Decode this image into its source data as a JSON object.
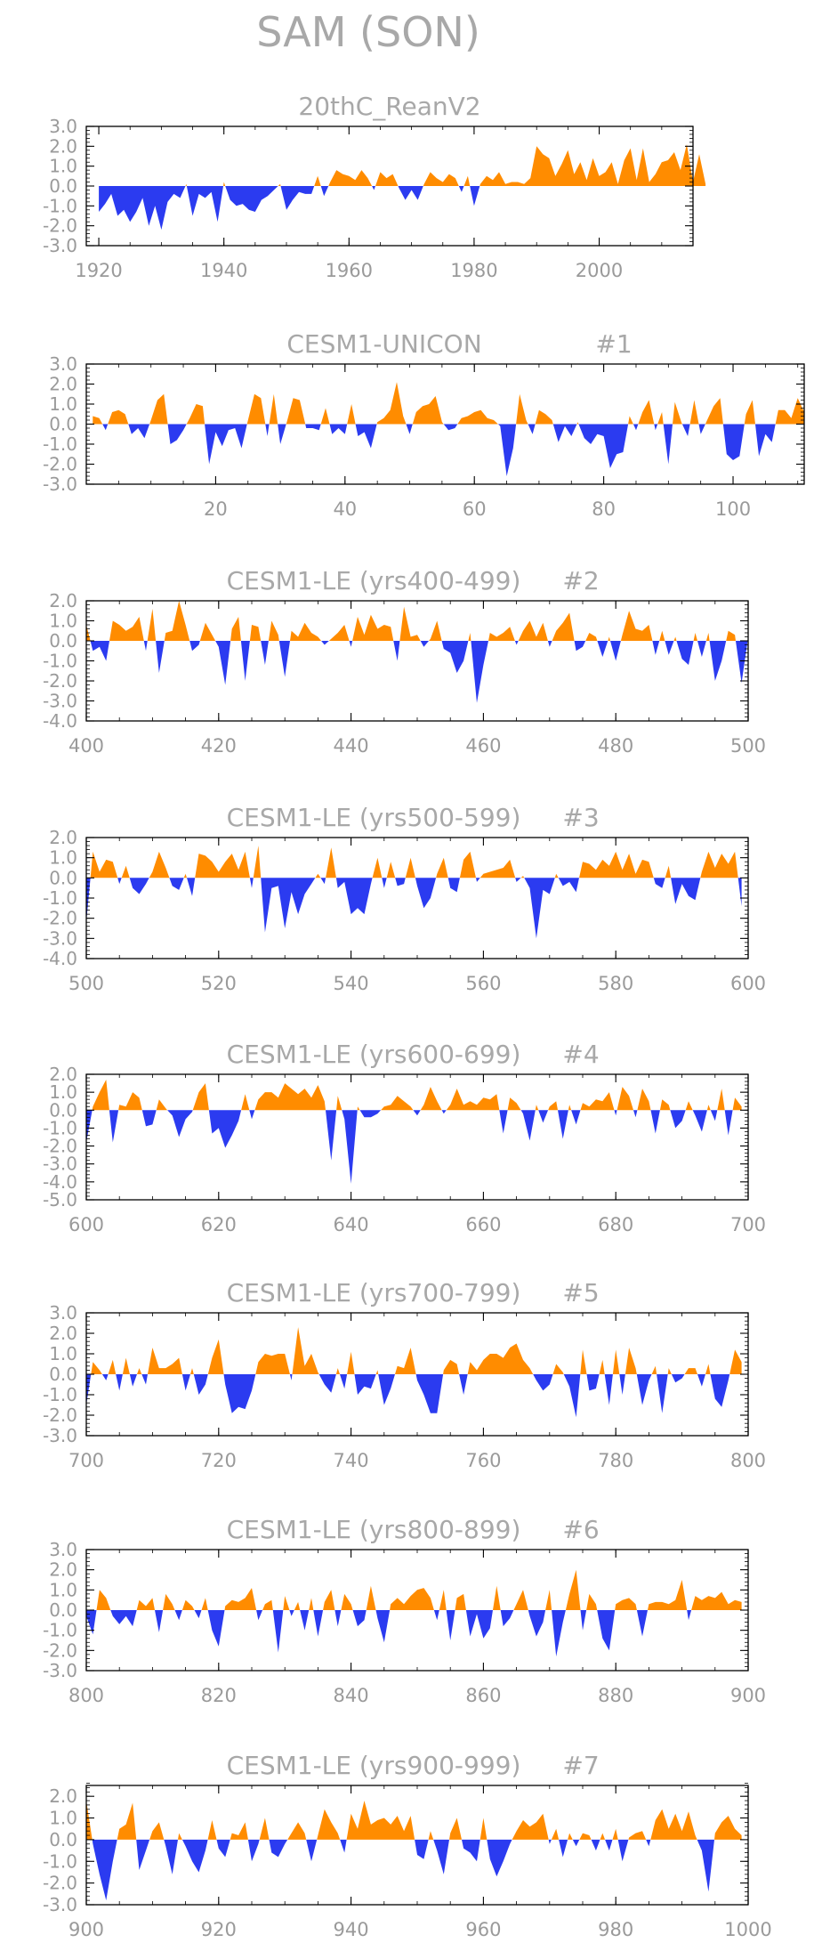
{
  "page": {
    "title": "SAM (SON)"
  },
  "colors": {
    "positive": "#ff8c00",
    "negative": "#2b3bf0",
    "frame": "#000000",
    "text": "#a8a8a8"
  },
  "chart_data": [
    {
      "type": "area",
      "title": "20thC_ReanV2",
      "xlim": [
        1918,
        2015
      ],
      "ylim": [
        -3.0,
        3.0
      ],
      "xticks": [
        1920,
        1940,
        1960,
        1980,
        2000
      ],
      "xtick_labels": [
        "1920",
        "1940",
        "1960",
        "1980",
        "2000"
      ],
      "yticks": [
        -3.0,
        -2.0,
        -1.0,
        0.0,
        1.0,
        2.0,
        3.0
      ],
      "ytick_labels": [
        "-3.0",
        "-2.0",
        "-1.0",
        "0.0",
        "1.0",
        "2.0",
        "3.0"
      ],
      "x_start": 1920,
      "values": [
        -1.3,
        -0.9,
        -0.4,
        -1.5,
        -1.2,
        -1.8,
        -1.3,
        -0.6,
        -2.0,
        -1.0,
        -2.2,
        -0.8,
        -0.4,
        -0.6,
        0.1,
        -1.5,
        -0.4,
        -0.6,
        -0.3,
        -1.8,
        0.2,
        -0.7,
        -1.0,
        -0.9,
        -1.2,
        -1.3,
        -0.7,
        -0.5,
        -0.2,
        0.1,
        -1.2,
        -0.7,
        -0.3,
        -0.4,
        -0.4,
        0.5,
        -0.5,
        0.2,
        0.8,
        0.6,
        0.5,
        0.3,
        0.8,
        0.4,
        -0.2,
        0.7,
        0.4,
        0.6,
        -0.1,
        -0.7,
        -0.2,
        -0.7,
        0.1,
        0.7,
        0.4,
        0.2,
        0.6,
        0.4,
        -0.3,
        0.5,
        -1.0,
        0.1,
        0.5,
        0.3,
        0.7,
        0.1,
        0.2,
        0.2,
        0.1,
        0.4,
        2.0,
        1.6,
        1.4,
        0.5,
        1.1,
        1.8,
        0.6,
        1.2,
        0.3,
        1.4,
        0.5,
        0.7,
        1.2,
        0.1,
        1.3,
        1.9,
        0.3,
        1.9,
        0.2,
        0.6,
        1.2,
        1.3,
        1.7,
        0.8,
        2.1,
        0.2,
        1.6,
        0.1
      ]
    },
    {
      "type": "area",
      "title": "CESM1-UNICON",
      "tag": "#1",
      "xlim": [
        0,
        111
      ],
      "ylim": [
        -3.0,
        3.0
      ],
      "xticks": [
        20,
        40,
        60,
        80,
        100
      ],
      "xtick_labels": [
        "20",
        "40",
        "60",
        "80",
        "100"
      ],
      "yticks": [
        -3.0,
        -2.0,
        -1.0,
        0.0,
        1.0,
        2.0,
        3.0
      ],
      "ytick_labels": [
        "-3.0",
        "-2.0",
        "-1.0",
        "0.0",
        "1.0",
        "2.0",
        "3.0"
      ],
      "x_start": 1,
      "values": [
        0.4,
        0.3,
        -0.3,
        0.6,
        0.7,
        0.5,
        -0.5,
        -0.2,
        -0.7,
        0.2,
        1.2,
        1.5,
        -1.0,
        -0.8,
        -0.3,
        0.3,
        1.0,
        0.9,
        -2.0,
        -0.4,
        -1.1,
        -0.3,
        -0.2,
        -1.2,
        0.2,
        1.5,
        1.3,
        -0.6,
        1.5,
        -1.0,
        0.1,
        1.3,
        1.2,
        -0.2,
        -0.2,
        -0.3,
        0.8,
        -0.5,
        -0.2,
        -0.5,
        1.0,
        -0.6,
        -0.4,
        -1.2,
        0.1,
        0.3,
        0.7,
        2.1,
        0.4,
        -0.5,
        0.6,
        0.9,
        1.0,
        1.4,
        0.1,
        -0.3,
        -0.2,
        0.3,
        0.4,
        0.6,
        0.7,
        0.3,
        0.2,
        -0.1,
        -2.6,
        -1.2,
        1.5,
        0.2,
        -0.5,
        0.7,
        0.5,
        0.2,
        -0.9,
        -0.1,
        -0.6,
        0.1,
        -0.7,
        -1.0,
        -0.5,
        -0.6,
        -2.2,
        -1.5,
        -1.4,
        0.4,
        -0.3,
        0.6,
        1.2,
        -0.3,
        0.6,
        -2.0,
        1.1,
        0.1,
        -0.6,
        1.2,
        -0.5,
        0.2,
        0.9,
        1.3,
        -1.5,
        -1.8,
        -1.6,
        0.5,
        1.2,
        -1.6,
        -0.5,
        -0.9,
        0.7,
        0.7,
        0.3,
        1.3,
        0.6
      ]
    },
    {
      "type": "area",
      "title": "CESM1-LE (yrs400-499)",
      "tag": "#2",
      "xlim": [
        400,
        500
      ],
      "ylim": [
        -4.0,
        2.0
      ],
      "xticks": [
        400,
        420,
        440,
        460,
        480,
        500
      ],
      "xtick_labels": [
        "400",
        "420",
        "440",
        "460",
        "480",
        "500"
      ],
      "yticks": [
        -4.0,
        -3.0,
        -2.0,
        -1.0,
        0.0,
        1.0,
        2.0
      ],
      "ytick_labels": [
        "-4.0",
        "-3.0",
        "-2.0",
        "-1.0",
        "0.0",
        "1.0",
        "2.0"
      ],
      "x_start": 400,
      "values": [
        0.8,
        -0.5,
        -0.3,
        -1.0,
        1.0,
        0.8,
        0.5,
        0.7,
        1.2,
        -0.5,
        1.6,
        -1.6,
        0.4,
        0.5,
        2.0,
        0.8,
        -0.5,
        -0.2,
        0.9,
        0.3,
        -0.3,
        -2.2,
        0.6,
        1.2,
        -2.0,
        0.8,
        0.7,
        -1.2,
        1.0,
        0.3,
        -1.8,
        0.5,
        0.2,
        0.9,
        0.4,
        0.2,
        -0.2,
        0.1,
        0.4,
        0.8,
        -0.3,
        1.2,
        0.3,
        1.3,
        0.6,
        0.8,
        0.7,
        -1.0,
        1.7,
        0.2,
        0.3,
        -0.3,
        0.1,
        1.0,
        -0.4,
        -0.6,
        -1.6,
        -1.0,
        0.4,
        -3.1,
        -1.2,
        0.4,
        0.2,
        0.4,
        0.7,
        -0.2,
        0.5,
        1.0,
        0.2,
        0.9,
        -0.3,
        0.5,
        0.9,
        1.4,
        -0.5,
        -0.3,
        0.4,
        0.2,
        -0.8,
        0.2,
        -1.0,
        0.3,
        1.5,
        0.6,
        0.5,
        0.8,
        -0.7,
        0.5,
        -0.7,
        0.2,
        -0.9,
        -1.2,
        0.4,
        -0.8,
        0.4,
        -2.0,
        -1.0,
        0.5,
        0.3,
        -2.1,
        0.2
      ]
    },
    {
      "type": "area",
      "title": "CESM1-LE (yrs500-599)",
      "tag": "#3",
      "xlim": [
        500,
        600
      ],
      "ylim": [
        -4.0,
        2.0
      ],
      "xticks": [
        500,
        520,
        540,
        560,
        580,
        600
      ],
      "xtick_labels": [
        "500",
        "520",
        "540",
        "560",
        "580",
        "600"
      ],
      "yticks": [
        -4.0,
        -3.0,
        -2.0,
        -1.0,
        0.0,
        1.0,
        2.0
      ],
      "ytick_labels": [
        "-4.0",
        "-3.0",
        "-2.0",
        "-1.0",
        "0.0",
        "1.0",
        "2.0"
      ],
      "x_start": 500,
      "values": [
        -2.2,
        1.3,
        0.3,
        0.9,
        0.8,
        -0.3,
        0.6,
        -0.5,
        -0.8,
        -0.3,
        0.3,
        1.3,
        0.5,
        -0.4,
        -0.6,
        0.2,
        -0.9,
        1.2,
        1.1,
        0.8,
        0.3,
        0.8,
        1.2,
        0.4,
        1.3,
        -0.5,
        1.6,
        -2.7,
        -0.5,
        -0.4,
        -2.5,
        -0.7,
        -1.8,
        -0.8,
        -0.3,
        0.2,
        -0.3,
        1.5,
        -0.5,
        -0.2,
        -1.8,
        -1.5,
        -1.8,
        -0.3,
        1.0,
        -0.5,
        0.8,
        -0.4,
        -0.3,
        1.0,
        -0.4,
        -1.5,
        -1.0,
        0.2,
        1.0,
        -0.5,
        -0.7,
        0.9,
        1.3,
        -0.2,
        0.2,
        0.3,
        0.4,
        0.5,
        0.9,
        -0.2,
        0.1,
        -0.5,
        -3.0,
        -0.6,
        -0.8,
        0.2,
        -0.4,
        -0.2,
        -0.7,
        0.8,
        0.7,
        0.4,
        0.9,
        0.6,
        1.3,
        0.4,
        1.2,
        0.2,
        0.9,
        0.8,
        -0.3,
        -0.5,
        0.6,
        -1.3,
        -0.3,
        -0.9,
        -1.1,
        0.3,
        1.3,
        0.5,
        1.2,
        0.7,
        1.3,
        -1.4
      ]
    },
    {
      "type": "area",
      "title": "CESM1-LE (yrs600-699)",
      "tag": "#4",
      "xlim": [
        600,
        700
      ],
      "ylim": [
        -5.0,
        2.0
      ],
      "xticks": [
        600,
        620,
        640,
        660,
        680,
        700
      ],
      "xtick_labels": [
        "600",
        "620",
        "640",
        "660",
        "680",
        "700"
      ],
      "yticks": [
        -5.0,
        -4.0,
        -3.0,
        -2.0,
        -1.0,
        0.0,
        1.0,
        2.0
      ],
      "ytick_labels": [
        "-5.0",
        "-4.0",
        "-3.0",
        "-2.0",
        "-1.0",
        "0.0",
        "1.0",
        "2.0"
      ],
      "x_start": 600,
      "values": [
        -1.8,
        0.2,
        1.0,
        1.7,
        -1.8,
        0.3,
        0.2,
        1.0,
        0.7,
        -0.9,
        -0.8,
        0.6,
        0.1,
        -0.3,
        -1.5,
        -0.5,
        -0.1,
        1.0,
        1.5,
        -1.3,
        -1.0,
        -2.1,
        -1.4,
        -0.6,
        0.9,
        -0.5,
        0.6,
        1.0,
        1.0,
        0.7,
        1.5,
        1.2,
        0.9,
        1.2,
        0.7,
        1.4,
        0.5,
        -2.8,
        0.8,
        -0.5,
        -4.1,
        0.2,
        -0.4,
        -0.4,
        -0.2,
        0.2,
        0.3,
        0.8,
        0.5,
        0.2,
        -0.3,
        0.3,
        1.3,
        0.5,
        -0.2,
        0.3,
        1.2,
        0.3,
        0.5,
        0.3,
        0.7,
        0.6,
        0.9,
        -1.3,
        0.7,
        0.4,
        -0.2,
        -1.7,
        0.3,
        -0.7,
        0.2,
        0.5,
        -1.6,
        0.3,
        -0.8,
        0.4,
        0.2,
        0.6,
        0.5,
        1.0,
        -0.3,
        1.3,
        0.8,
        -0.4,
        1.2,
        0.5,
        -1.3,
        0.6,
        0.3,
        -1.0,
        -0.6,
        0.5,
        -0.3,
        -1.2,
        0.3,
        -0.6,
        1.2,
        -1.4,
        0.7,
        0.2
      ]
    },
    {
      "type": "area",
      "title": "CESM1-LE (yrs700-799)",
      "tag": "#5",
      "xlim": [
        700,
        800
      ],
      "ylim": [
        -3.0,
        3.0
      ],
      "xticks": [
        700,
        720,
        740,
        760,
        780,
        800
      ],
      "xtick_labels": [
        "700",
        "720",
        "740",
        "760",
        "780",
        "800"
      ],
      "yticks": [
        -3.0,
        -2.0,
        -1.0,
        0.0,
        1.0,
        2.0,
        3.0
      ],
      "ytick_labels": [
        "-3.0",
        "-2.0",
        "-1.0",
        "0.0",
        "1.0",
        "2.0",
        "3.0"
      ],
      "x_start": 700,
      "values": [
        -1.5,
        0.6,
        0.2,
        -0.3,
        0.7,
        -0.8,
        0.8,
        -0.6,
        0.3,
        -0.5,
        1.3,
        0.3,
        0.3,
        0.5,
        0.8,
        -0.8,
        0.3,
        -1.0,
        -0.5,
        0.8,
        1.7,
        -0.5,
        -1.9,
        -1.6,
        -1.7,
        -0.8,
        0.6,
        1.0,
        0.9,
        1.0,
        1.0,
        -0.3,
        2.3,
        0.4,
        1.0,
        0.1,
        -0.5,
        -0.9,
        0.3,
        -0.7,
        1.1,
        -1.0,
        -0.6,
        -0.7,
        0.2,
        -1.5,
        -0.7,
        0.4,
        0.3,
        1.3,
        -0.3,
        -1.0,
        -1.9,
        -1.9,
        0.2,
        0.7,
        0.5,
        -1.0,
        0.6,
        0.2,
        0.7,
        1.0,
        1.0,
        0.8,
        1.3,
        1.5,
        0.7,
        0.3,
        -0.3,
        -0.8,
        -0.5,
        0.5,
        0.1,
        -0.6,
        -2.1,
        1.2,
        -0.8,
        -0.7,
        0.7,
        -1.5,
        1.2,
        -1.0,
        1.3,
        0.3,
        -1.5,
        -0.3,
        0.4,
        -1.9,
        0.3,
        -0.4,
        -0.2,
        0.3,
        0.3,
        -0.6,
        0.5,
        -1.2,
        -1.6,
        -0.3,
        1.2,
        0.6
      ]
    },
    {
      "type": "area",
      "title": "CESM1-LE (yrs800-899)",
      "tag": "#6",
      "xlim": [
        800,
        900
      ],
      "ylim": [
        -3.0,
        3.0
      ],
      "xticks": [
        800,
        820,
        840,
        860,
        880,
        900
      ],
      "xtick_labels": [
        "800",
        "820",
        "840",
        "860",
        "880",
        "900"
      ],
      "yticks": [
        -3.0,
        -2.0,
        -1.0,
        0.0,
        1.0,
        2.0,
        3.0
      ],
      "ytick_labels": [
        "-3.0",
        "-2.0",
        "-1.0",
        "0.0",
        "1.0",
        "2.0",
        "3.0"
      ],
      "x_start": 800,
      "values": [
        -0.3,
        -1.2,
        1.0,
        0.6,
        -0.3,
        -0.7,
        -0.3,
        -0.8,
        0.5,
        0.2,
        0.6,
        -1.1,
        0.8,
        0.3,
        -0.5,
        0.5,
        0.2,
        -0.4,
        0.6,
        -1.0,
        -1.8,
        0.2,
        0.5,
        0.4,
        0.6,
        1.1,
        -0.5,
        0.3,
        0.5,
        -2.1,
        0.7,
        -0.3,
        0.4,
        -1.0,
        0.6,
        -1.3,
        0.4,
        1.0,
        -0.8,
        0.8,
        0.3,
        -0.8,
        -0.5,
        1.2,
        -0.4,
        -1.6,
        0.3,
        0.6,
        0.3,
        0.7,
        1.0,
        1.1,
        0.6,
        -0.5,
        1.0,
        -1.5,
        0.6,
        0.8,
        -1.3,
        -0.2,
        -1.4,
        -0.9,
        1.2,
        -0.8,
        -0.4,
        0.3,
        1.0,
        -0.3,
        -1.3,
        -0.6,
        1.0,
        -2.3,
        -0.6,
        0.8,
        2.0,
        -1.0,
        0.8,
        0.3,
        -1.4,
        -2.0,
        0.3,
        0.5,
        0.6,
        0.3,
        -1.3,
        0.3,
        0.4,
        0.4,
        0.3,
        0.5,
        1.5,
        -0.5,
        0.7,
        0.5,
        0.7,
        0.6,
        0.9,
        0.3,
        0.5,
        0.4
      ]
    },
    {
      "type": "area",
      "title": "CESM1-LE (yrs900-999)",
      "tag": "#7",
      "xlim": [
        900,
        1000
      ],
      "ylim": [
        -3.0,
        2.5
      ],
      "xticks": [
        900,
        920,
        940,
        960,
        980,
        1000
      ],
      "xtick_labels": [
        "900",
        "920",
        "940",
        "960",
        "980",
        "1000"
      ],
      "yticks": [
        -3.0,
        -2.0,
        -1.0,
        0.0,
        1.0,
        2.0
      ],
      "ytick_labels": [
        "-3.0",
        "-2.0",
        "-1.0",
        "0.0",
        "1.0",
        "2.0"
      ],
      "x_start": 900,
      "values": [
        1.8,
        -0.2,
        -1.6,
        -2.8,
        -1.0,
        0.5,
        0.7,
        1.7,
        -1.4,
        -0.5,
        0.4,
        0.8,
        -0.3,
        -1.6,
        0.3,
        -0.3,
        -1.0,
        -1.5,
        -0.5,
        0.9,
        -0.4,
        -0.8,
        0.3,
        0.2,
        0.8,
        -1.0,
        -0.2,
        1.0,
        -0.6,
        -0.8,
        -0.2,
        0.3,
        0.8,
        0.3,
        -1.0,
        0.2,
        1.4,
        0.8,
        0.3,
        -0.6,
        1.2,
        0.5,
        1.8,
        0.7,
        0.9,
        1.0,
        0.7,
        1.1,
        0.4,
        1.1,
        -0.7,
        -0.9,
        0.4,
        -0.5,
        -1.6,
        0.3,
        1.0,
        -0.4,
        -0.6,
        -1.0,
        1.0,
        -0.9,
        -1.7,
        -1.0,
        -0.2,
        0.4,
        0.9,
        0.6,
        0.8,
        1.2,
        -0.2,
        0.5,
        -0.8,
        0.3,
        -0.3,
        0.3,
        0.2,
        -0.5,
        0.3,
        -0.5,
        0.5,
        -1.0,
        0.1,
        0.3,
        0.4,
        -0.3,
        0.9,
        1.4,
        0.5,
        1.2,
        0.4,
        1.3,
        0.2,
        -0.5,
        -2.4,
        0.3,
        0.8,
        1.1,
        0.5,
        0.2
      ]
    }
  ]
}
